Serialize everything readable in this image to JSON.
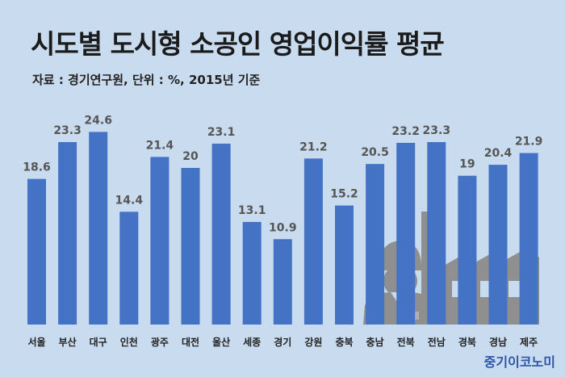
{
  "title": "시도별 도시형 소공인 영업이익률 평균",
  "source_note": "자료 : 경기연구원, 단위 : %, 2015년 기준",
  "brand": "중기이코노미",
  "colors": {
    "bar": "#4472c4",
    "background": "#c9dbef",
    "label": "#555555",
    "illustration": "#8f8f8f"
  },
  "illustration": "worker-and-factory-icon",
  "chart_data": {
    "type": "bar",
    "title": "시도별 도시형 소공인 영업이익률 평균",
    "categories": [
      "서울",
      "부산",
      "대구",
      "인천",
      "광주",
      "대전",
      "울산",
      "세종",
      "경기",
      "강원",
      "충북",
      "충남",
      "전북",
      "전남",
      "경북",
      "경남",
      "제주"
    ],
    "values": [
      18.6,
      23.3,
      24.6,
      14.4,
      21.4,
      20,
      23.1,
      13.1,
      10.9,
      21.2,
      15.2,
      20.5,
      23.2,
      23.3,
      19,
      20.4,
      21.9
    ],
    "value_labels": [
      "18.6",
      "23.3",
      "24.6",
      "14.4",
      "21.4",
      "20",
      "23.1",
      "13.1",
      "10.9",
      "21.2",
      "15.2",
      "20.5",
      "23.2",
      "23.3",
      "19",
      "20.4",
      "21.9"
    ],
    "xlabel": "",
    "ylabel": "",
    "ylim": [
      0,
      25
    ],
    "grid": false,
    "legend": "none"
  }
}
